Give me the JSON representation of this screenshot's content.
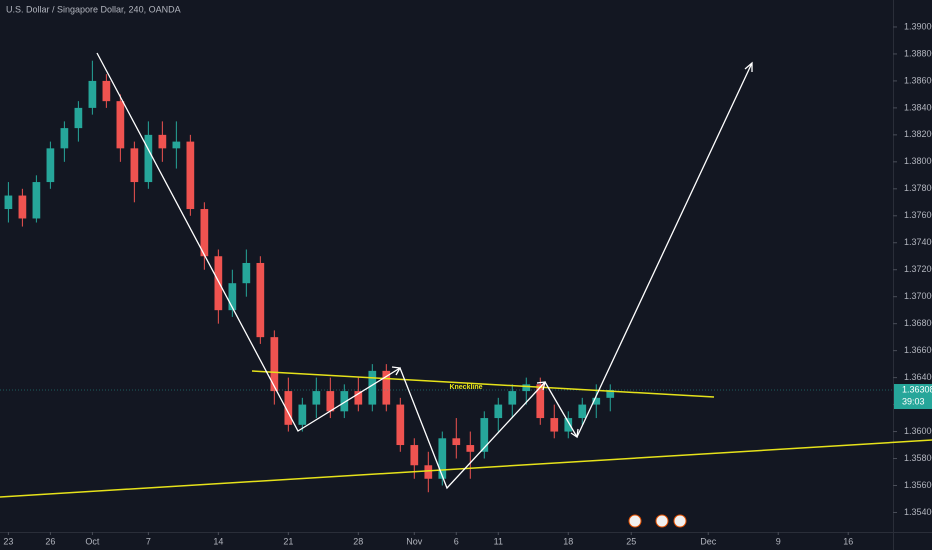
{
  "chart_data": {
    "type": "candlestick",
    "title": "U.S. Dollar / Singapore Dollar, 240, OANDA",
    "annotation": "Kneckline",
    "up_color": "#26a69a",
    "down_color": "#ef5350",
    "grid": false,
    "x": [
      0,
      1,
      2,
      3,
      4,
      5,
      6,
      7,
      8,
      9,
      10,
      11,
      12,
      13,
      14,
      15,
      16,
      17,
      18,
      19,
      20,
      21,
      22,
      23,
      24,
      25,
      26,
      27,
      28,
      29,
      30,
      31,
      32,
      33,
      34,
      35,
      36,
      37,
      38,
      39,
      40,
      41,
      42,
      43
    ],
    "open": [
      1.3765,
      1.3775,
      1.3758,
      1.3785,
      1.381,
      1.3825,
      1.384,
      1.386,
      1.3845,
      1.381,
      1.3785,
      1.382,
      1.381,
      1.3815,
      1.3765,
      1.373,
      1.369,
      1.371,
      1.3725,
      1.367,
      1.363,
      1.3605,
      1.362,
      1.363,
      1.3615,
      1.363,
      1.362,
      1.3645,
      1.362,
      1.359,
      1.3575,
      1.3565,
      1.3595,
      1.359,
      1.3585,
      1.361,
      1.362,
      1.363,
      1.3635,
      1.361,
      1.36,
      1.361,
      1.362,
      1.3625
    ],
    "high": [
      1.3785,
      1.378,
      1.379,
      1.3815,
      1.383,
      1.3845,
      1.3875,
      1.3865,
      1.385,
      1.3815,
      1.383,
      1.383,
      1.383,
      1.382,
      1.377,
      1.3735,
      1.372,
      1.3735,
      1.373,
      1.3675,
      1.364,
      1.3625,
      1.364,
      1.364,
      1.3635,
      1.364,
      1.365,
      1.365,
      1.3625,
      1.3595,
      1.3585,
      1.36,
      1.361,
      1.36,
      1.3615,
      1.3625,
      1.3635,
      1.364,
      1.364,
      1.362,
      1.3615,
      1.3625,
      1.3635,
      1.3635
    ],
    "low": [
      1.3755,
      1.3752,
      1.3755,
      1.378,
      1.38,
      1.3815,
      1.3835,
      1.384,
      1.38,
      1.377,
      1.378,
      1.38,
      1.3795,
      1.376,
      1.372,
      1.368,
      1.3685,
      1.37,
      1.3665,
      1.362,
      1.36,
      1.36,
      1.361,
      1.361,
      1.361,
      1.3615,
      1.3615,
      1.3615,
      1.3585,
      1.3565,
      1.3555,
      1.356,
      1.358,
      1.3565,
      1.358,
      1.36,
      1.361,
      1.362,
      1.3605,
      1.3595,
      1.3595,
      1.3605,
      1.361,
      1.3615
    ],
    "close": [
      1.3775,
      1.3758,
      1.3785,
      1.381,
      1.3825,
      1.384,
      1.386,
      1.3845,
      1.381,
      1.3785,
      1.382,
      1.381,
      1.3815,
      1.3765,
      1.373,
      1.369,
      1.371,
      1.3725,
      1.367,
      1.363,
      1.3605,
      1.362,
      1.363,
      1.3615,
      1.363,
      1.362,
      1.3645,
      1.362,
      1.359,
      1.3575,
      1.3565,
      1.3595,
      1.359,
      1.3585,
      1.361,
      1.362,
      1.363,
      1.3635,
      1.361,
      1.36,
      1.361,
      1.362,
      1.3625,
      1.36308
    ],
    "xlim": [
      -0.6,
      63.2
    ],
    "ylim": [
      1.3527,
      1.392
    ],
    "xticks": [
      {
        "value": 0,
        "label": "23"
      },
      {
        "value": 3,
        "label": "26"
      },
      {
        "value": 6,
        "label": "Oct"
      },
      {
        "value": 10,
        "label": "7"
      },
      {
        "value": 15,
        "label": "14"
      },
      {
        "value": 20,
        "label": "21"
      },
      {
        "value": 25,
        "label": "28"
      },
      {
        "value": 29,
        "label": "Nov"
      },
      {
        "value": 32,
        "label": "6"
      },
      {
        "value": 35,
        "label": "11"
      },
      {
        "value": 40,
        "label": "18"
      },
      {
        "value": 44.5,
        "label": "25"
      },
      {
        "value": 50,
        "label": "Dec"
      },
      {
        "value": 55,
        "label": "9"
      },
      {
        "value": 60,
        "label": "16"
      }
    ],
    "yticks": [
      {
        "value": 1.354,
        "label": "1.35400"
      },
      {
        "value": 1.356,
        "label": "1.35600"
      },
      {
        "value": 1.358,
        "label": "1.35800"
      },
      {
        "value": 1.36,
        "label": "1.36000"
      },
      {
        "value": 1.362,
        "label": "1.36200"
      },
      {
        "value": 1.364,
        "label": "1.36400"
      },
      {
        "value": 1.366,
        "label": "1.36600"
      },
      {
        "value": 1.368,
        "label": "1.36800"
      },
      {
        "value": 1.37,
        "label": "1.37000"
      },
      {
        "value": 1.372,
        "label": "1.37200"
      },
      {
        "value": 1.374,
        "label": "1.37400"
      },
      {
        "value": 1.376,
        "label": "1.37600"
      },
      {
        "value": 1.378,
        "label": "1.37800"
      },
      {
        "value": 1.38,
        "label": "1.38000"
      },
      {
        "value": 1.382,
        "label": "1.38200"
      },
      {
        "value": 1.384,
        "label": "1.38400"
      },
      {
        "value": 1.386,
        "label": "1.38600"
      },
      {
        "value": 1.388,
        "label": "1.38800"
      },
      {
        "value": 1.39,
        "label": "1.39000"
      }
    ],
    "last_price": {
      "value": 1.36308,
      "label": "1.36308"
    },
    "countdown": "39:03"
  }
}
